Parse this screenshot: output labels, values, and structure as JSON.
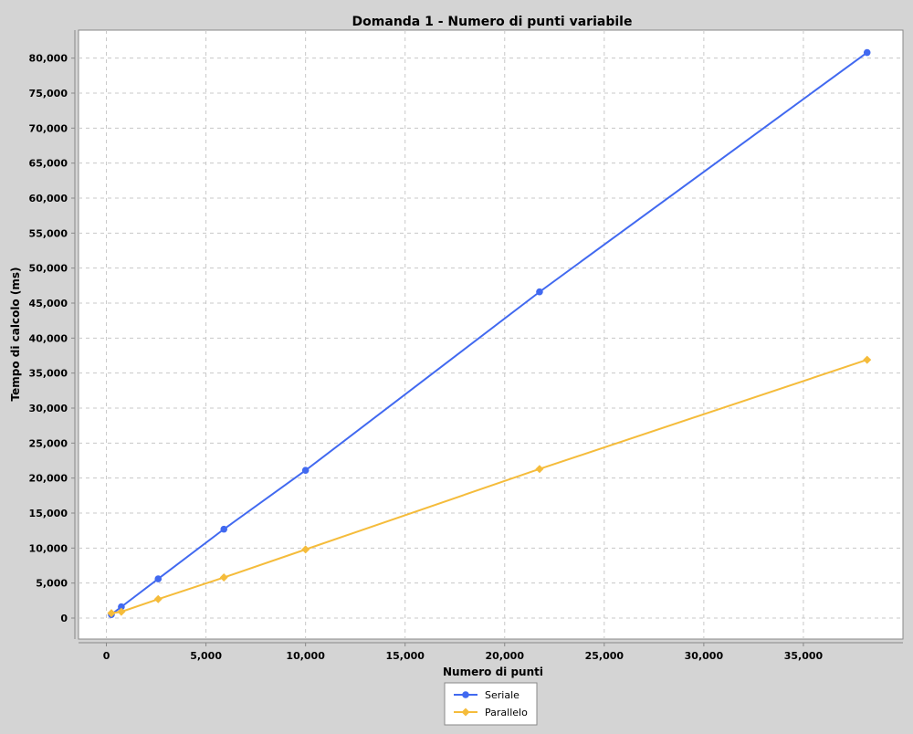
{
  "chart_data": {
    "type": "line",
    "title": "Domanda 1 - Numero di punti variabile",
    "xlabel": "Numero di punti",
    "ylabel": "Tempo di calcolo (ms)",
    "xlim": [
      -1400,
      40000
    ],
    "ylim": [
      -3000,
      84000
    ],
    "x_ticks": [
      0,
      5000,
      10000,
      15000,
      20000,
      25000,
      30000,
      35000
    ],
    "x_tick_labels": [
      "0",
      "5,000",
      "10,000",
      "15,000",
      "20,000",
      "25,000",
      "30,000",
      "35,000"
    ],
    "y_ticks": [
      0,
      5000,
      10000,
      15000,
      20000,
      25000,
      30000,
      35000,
      40000,
      45000,
      50000,
      55000,
      60000,
      65000,
      70000,
      75000,
      80000
    ],
    "y_tick_labels": [
      "0",
      "5,000",
      "10,000",
      "15,000",
      "20,000",
      "25,000",
      "30,000",
      "35,000",
      "40,000",
      "45,000",
      "50,000",
      "55,000",
      "60,000",
      "65,000",
      "70,000",
      "75,000",
      "80,000"
    ],
    "grid": true,
    "legend_position": "bottom",
    "series": [
      {
        "name": "Seriale",
        "color": "#4169f0",
        "marker": "circle",
        "x": [
          250,
          750,
          2600,
          5900,
          10000,
          21750,
          38200
        ],
        "values": [
          500,
          1600,
          5600,
          12700,
          21100,
          46600,
          80800
        ]
      },
      {
        "name": "Parallelo",
        "color": "#f5bc3b",
        "marker": "diamond",
        "x": [
          250,
          750,
          2600,
          5900,
          10000,
          21750,
          38200
        ],
        "values": [
          700,
          900,
          2700,
          5800,
          9800,
          21300,
          36900
        ]
      }
    ]
  }
}
